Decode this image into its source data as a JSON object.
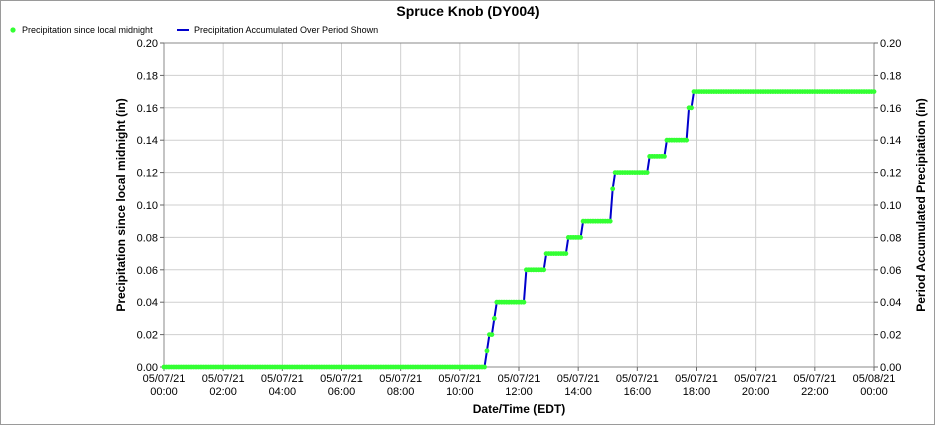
{
  "chart_data": {
    "type": "line",
    "title": "Spruce Knob (DY004)",
    "xlabel": "Date/Time (EDT)",
    "ylabel": "Precipitation since local midnight (in)",
    "y2label": "Period Accumulated Precipitation (in)",
    "xlim": [
      0,
      24
    ],
    "ylim": [
      0,
      0.2
    ],
    "y2lim": [
      0,
      0.2
    ],
    "grid": true,
    "legend_position": "top-left",
    "x_ticks": [
      {
        "date": "05/07/21",
        "time": "00:00"
      },
      {
        "date": "05/07/21",
        "time": "02:00"
      },
      {
        "date": "05/07/21",
        "time": "04:00"
      },
      {
        "date": "05/07/21",
        "time": "06:00"
      },
      {
        "date": "05/07/21",
        "time": "08:00"
      },
      {
        "date": "05/07/21",
        "time": "10:00"
      },
      {
        "date": "05/07/21",
        "time": "12:00"
      },
      {
        "date": "05/07/21",
        "time": "14:00"
      },
      {
        "date": "05/07/21",
        "time": "16:00"
      },
      {
        "date": "05/07/21",
        "time": "18:00"
      },
      {
        "date": "05/07/21",
        "time": "20:00"
      },
      {
        "date": "05/07/21",
        "time": "22:00"
      },
      {
        "date": "05/08/21",
        "time": "00:00"
      }
    ],
    "y_ticks": [
      "0.00",
      "0.02",
      "0.04",
      "0.06",
      "0.08",
      "0.10",
      "0.12",
      "0.14",
      "0.16",
      "0.18",
      "0.20"
    ],
    "series": [
      {
        "name": "Precipitation since local midnight",
        "type": "scatter",
        "color": "#33ff33",
        "marker": "circle",
        "steps": [
          [
            0.0,
            0.0
          ],
          [
            10.75,
            0.0
          ],
          [
            10.875,
            0.01
          ],
          [
            11.0,
            0.02
          ],
          [
            11.125,
            0.03
          ],
          [
            11.25,
            0.04
          ],
          [
            12.0,
            0.04
          ],
          [
            12.25,
            0.06
          ],
          [
            12.75,
            0.06
          ],
          [
            12.875,
            0.07
          ],
          [
            13.5,
            0.07
          ],
          [
            13.625,
            0.08
          ],
          [
            14.0,
            0.08
          ],
          [
            14.125,
            0.09
          ],
          [
            15.0,
            0.09
          ],
          [
            15.125,
            0.11
          ],
          [
            15.25,
            0.12
          ],
          [
            16.25,
            0.12
          ],
          [
            16.375,
            0.13
          ],
          [
            16.875,
            0.13
          ],
          [
            17.0,
            0.14
          ],
          [
            17.5,
            0.14
          ],
          [
            17.75,
            0.16
          ],
          [
            17.875,
            0.17
          ],
          [
            24.0,
            0.17
          ]
        ]
      },
      {
        "name": "Precipitation Accumulated Over Period Shown",
        "type": "line",
        "color": "#0000cc",
        "steps": [
          [
            0.0,
            0.0
          ],
          [
            10.75,
            0.0
          ],
          [
            10.875,
            0.01
          ],
          [
            11.0,
            0.02
          ],
          [
            11.125,
            0.03
          ],
          [
            11.25,
            0.04
          ],
          [
            12.0,
            0.04
          ],
          [
            12.25,
            0.06
          ],
          [
            12.75,
            0.06
          ],
          [
            12.875,
            0.07
          ],
          [
            13.5,
            0.07
          ],
          [
            13.625,
            0.08
          ],
          [
            14.0,
            0.08
          ],
          [
            14.125,
            0.09
          ],
          [
            15.0,
            0.09
          ],
          [
            15.125,
            0.11
          ],
          [
            15.25,
            0.12
          ],
          [
            16.25,
            0.12
          ],
          [
            16.375,
            0.13
          ],
          [
            16.875,
            0.13
          ],
          [
            17.0,
            0.14
          ],
          [
            17.5,
            0.14
          ],
          [
            17.75,
            0.16
          ],
          [
            17.875,
            0.17
          ],
          [
            24.0,
            0.17
          ]
        ]
      }
    ]
  }
}
